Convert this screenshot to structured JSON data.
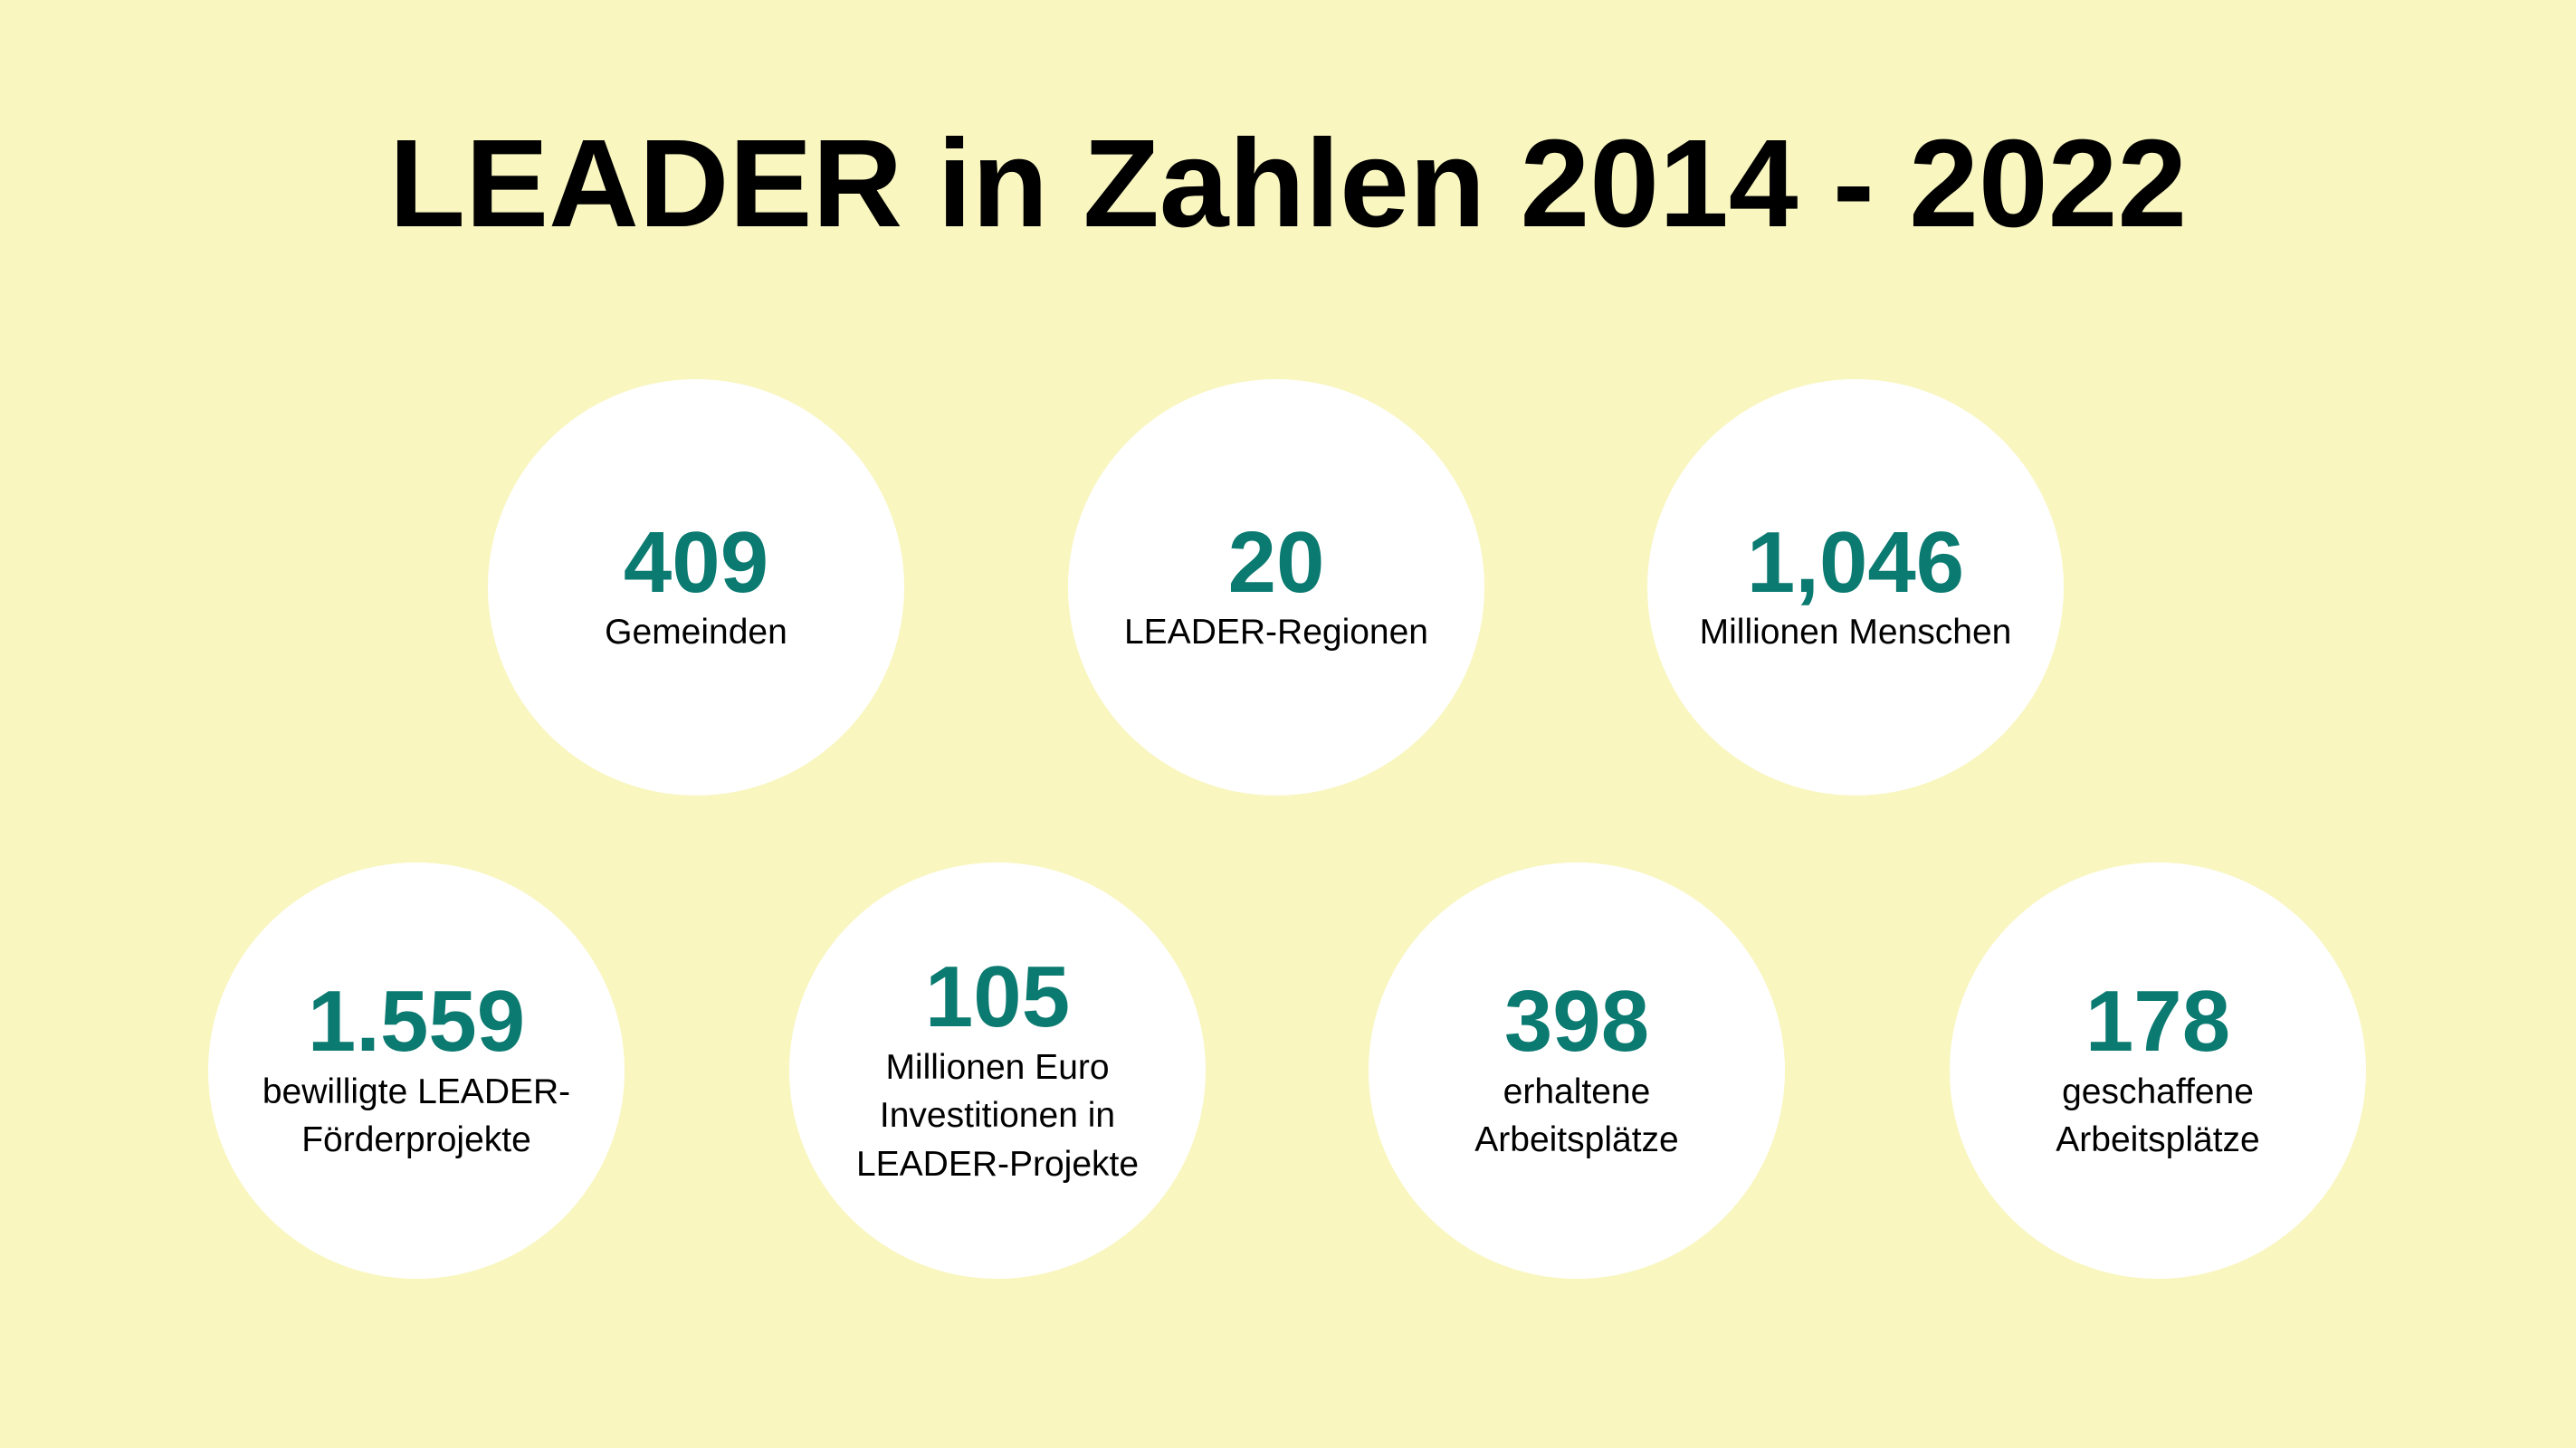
{
  "title": "LEADER in Zahlen 2014 - 2022",
  "colors": {
    "background": "#f9f6c0",
    "circle": "#ffffff",
    "number": "#0b7a70",
    "text": "#000000"
  },
  "stats": [
    {
      "value": "409",
      "label": "Gemeinden"
    },
    {
      "value": "20",
      "label": "LEADER-Regionen"
    },
    {
      "value": "1,046",
      "label": "Millionen Menschen"
    },
    {
      "value": "1.559",
      "label": "bewilligte LEADER-\nFörderprojekte"
    },
    {
      "value": "105",
      "label": "Millionen Euro\nInvestitionen in\nLEADER-Projekte"
    },
    {
      "value": "398",
      "label": "erhaltene\nArbeitsplätze"
    },
    {
      "value": "178",
      "label": "geschaffene\nArbeitsplätze"
    }
  ]
}
